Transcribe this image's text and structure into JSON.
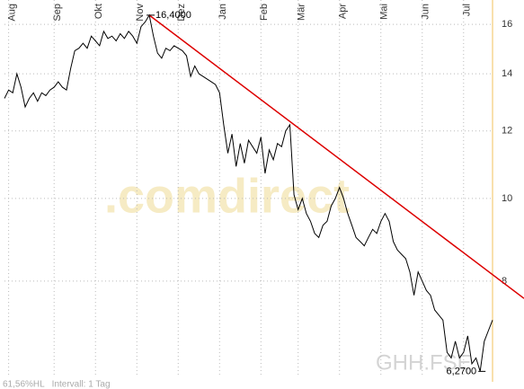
{
  "chart_data": {
    "type": "line",
    "log_scale": true,
    "grid": true,
    "categories": [
      null,
      "Aug",
      null,
      null,
      null,
      null,
      null,
      null,
      null,
      null,
      null,
      null,
      "Sep",
      null,
      null,
      null,
      null,
      null,
      null,
      null,
      null,
      null,
      "Okt",
      null,
      null,
      null,
      null,
      null,
      null,
      null,
      null,
      null,
      "Nov",
      null,
      null,
      null,
      null,
      null,
      null,
      null,
      null,
      null,
      "Dez",
      null,
      null,
      null,
      null,
      null,
      null,
      null,
      null,
      null,
      "Jan",
      null,
      null,
      null,
      null,
      null,
      null,
      null,
      null,
      null,
      "Feb",
      null,
      null,
      null,
      null,
      null,
      null,
      null,
      null,
      "Mär",
      null,
      null,
      null,
      null,
      null,
      null,
      null,
      null,
      null,
      "Apr",
      null,
      null,
      null,
      null,
      null,
      null,
      null,
      null,
      null,
      "Mai",
      null,
      null,
      null,
      null,
      null,
      null,
      null,
      null,
      null,
      "Jun",
      null,
      null,
      null,
      null,
      null,
      null,
      null,
      null,
      null,
      "Jul",
      null,
      null,
      null,
      null,
      null,
      null,
      null
    ],
    "series": [
      {
        "color": "#000000",
        "values": [
          13.1,
          13.4,
          13.3,
          14.0,
          13.5,
          12.8,
          13.1,
          13.3,
          13.0,
          13.3,
          13.2,
          13.4,
          13.5,
          13.7,
          13.5,
          13.4,
          14.2,
          14.9,
          15.0,
          15.2,
          15.0,
          15.5,
          15.3,
          15.1,
          15.7,
          15.4,
          15.5,
          15.3,
          15.6,
          15.4,
          15.7,
          15.5,
          15.2,
          15.9,
          16.1,
          16.4,
          15.5,
          14.8,
          14.6,
          15.0,
          14.9,
          15.1,
          15.0,
          14.9,
          14.7,
          13.9,
          14.3,
          14.0,
          13.9,
          13.8,
          13.7,
          13.6,
          13.3,
          12.2,
          11.3,
          11.9,
          10.9,
          11.6,
          11.0,
          11.7,
          11.5,
          11.3,
          11.8,
          10.7,
          11.4,
          11.1,
          11.6,
          11.5,
          12.0,
          12.2,
          10.1,
          9.7,
          10.0,
          9.6,
          9.4,
          9.1,
          9.0,
          9.3,
          9.4,
          9.8,
          10.0,
          10.3,
          10.0,
          9.6,
          9.3,
          9.0,
          8.9,
          8.8,
          9.0,
          9.2,
          9.1,
          9.4,
          9.6,
          9.4,
          8.9,
          8.7,
          8.6,
          8.5,
          8.2,
          7.7,
          8.2,
          8.0,
          7.8,
          7.7,
          7.4,
          7.3,
          7.2,
          6.6,
          6.5,
          6.8,
          6.5,
          6.6,
          6.9,
          6.4,
          6.5,
          6.27,
          6.8,
          7.0,
          7.2
        ]
      }
    ],
    "trend_line": {
      "color": "#dd0000",
      "x": [
        35,
        118
      ],
      "values": [
        16.4,
        8.14
      ]
    },
    "ylim": [
      6.17,
      16.88
    ],
    "yticks": [
      8,
      10,
      12,
      14,
      16
    ],
    "max_label": "16,4000",
    "min_label": "6,2700",
    "watermark": ".comdirect",
    "symbol": "GHH.FSE",
    "footer": "61,56%HL   Intervall: 1 Tag"
  }
}
